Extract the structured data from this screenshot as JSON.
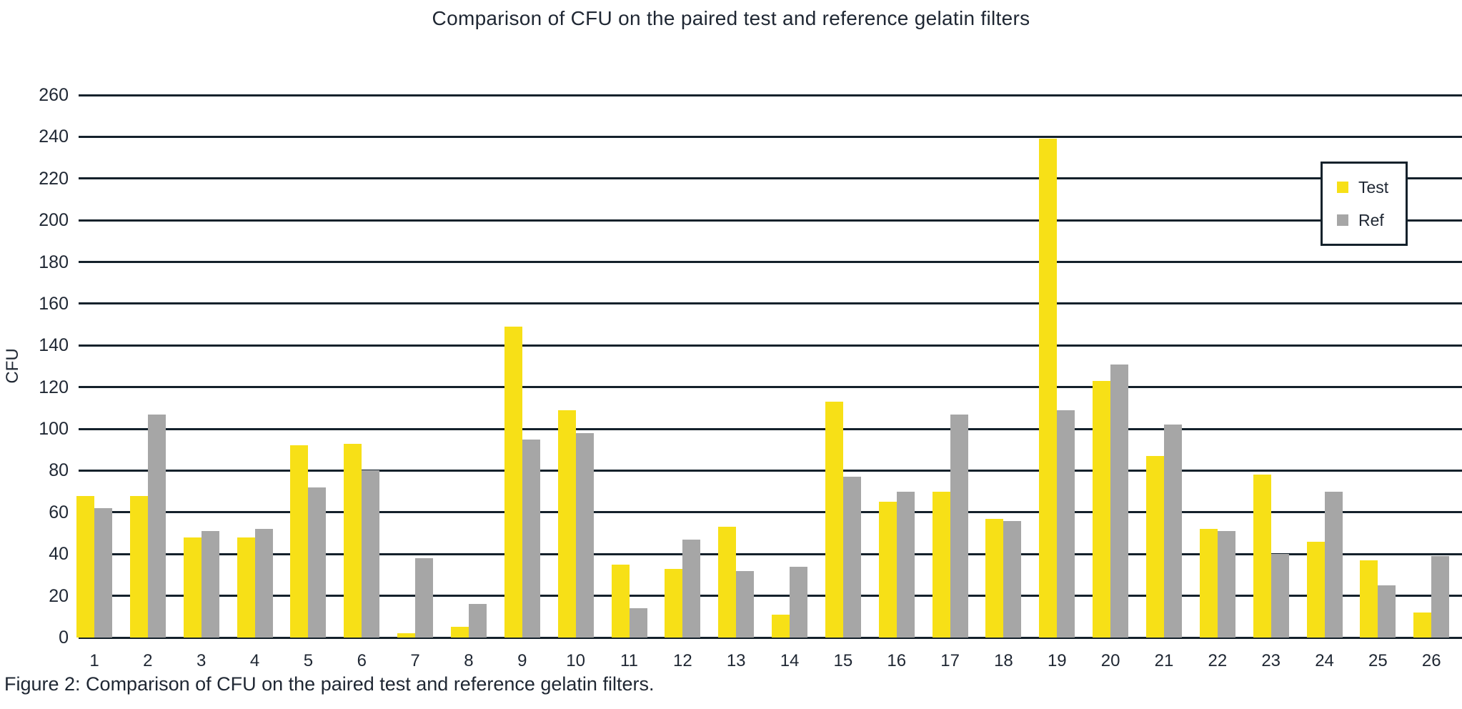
{
  "title": "Comparison of CFU on the paired test and reference gelatin filters",
  "caption": "Figure 2: Comparison of CFU on the paired test and reference gelatin filters.",
  "colors": {
    "test": "#F7E017",
    "ref": "#A6A6A6",
    "line": "#14212b",
    "text": "#1f2733",
    "background": "#ffffff"
  },
  "chart_data": {
    "type": "bar",
    "title": "Comparison of CFU on the paired test and reference gelatin filters",
    "xlabel": "",
    "ylabel": "CFU",
    "categories": [
      "1",
      "2",
      "3",
      "4",
      "5",
      "6",
      "7",
      "8",
      "9",
      "10",
      "11",
      "12",
      "13",
      "14",
      "15",
      "16",
      "17",
      "18",
      "19",
      "20",
      "21",
      "22",
      "23",
      "24",
      "25",
      "26"
    ],
    "series": [
      {
        "name": "Test",
        "color": "#F7E017",
        "values": [
          68,
          68,
          48,
          48,
          92,
          93,
          2,
          5,
          149,
          109,
          35,
          33,
          53,
          11,
          113,
          65,
          70,
          57,
          239,
          123,
          87,
          52,
          78,
          46,
          37,
          12
        ]
      },
      {
        "name": "Ref",
        "color": "#A6A6A6",
        "values": [
          62,
          107,
          51,
          52,
          72,
          80,
          38,
          16,
          95,
          98,
          14,
          47,
          32,
          34,
          77,
          70,
          107,
          56,
          109,
          131,
          102,
          51,
          40,
          70,
          25,
          39
        ]
      }
    ],
    "ylim": [
      0,
      260
    ],
    "ytick_step": 20,
    "y_ticks": [
      "0",
      "20",
      "40",
      "60",
      "80",
      "100",
      "120",
      "140",
      "160",
      "180",
      "200",
      "220",
      "240",
      "260"
    ],
    "grid": true,
    "legend_position": "top-right"
  }
}
